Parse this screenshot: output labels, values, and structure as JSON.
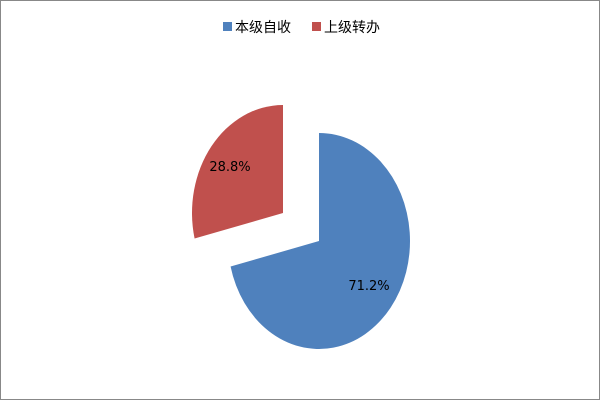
{
  "chart_data": {
    "type": "pie",
    "categories": [
      "本级自收",
      "上级转办"
    ],
    "values": [
      71.2,
      28.8
    ],
    "data_labels": [
      "71.2%",
      "28.8%"
    ],
    "colors": [
      "#4f81bd",
      "#c0504d"
    ],
    "exploded": [
      false,
      true
    ],
    "legend": {
      "position": "top",
      "items": [
        {
          "label": "本级自收",
          "color": "#4f81bd"
        },
        {
          "label": "上级转办",
          "color": "#c0504d"
        }
      ]
    }
  }
}
